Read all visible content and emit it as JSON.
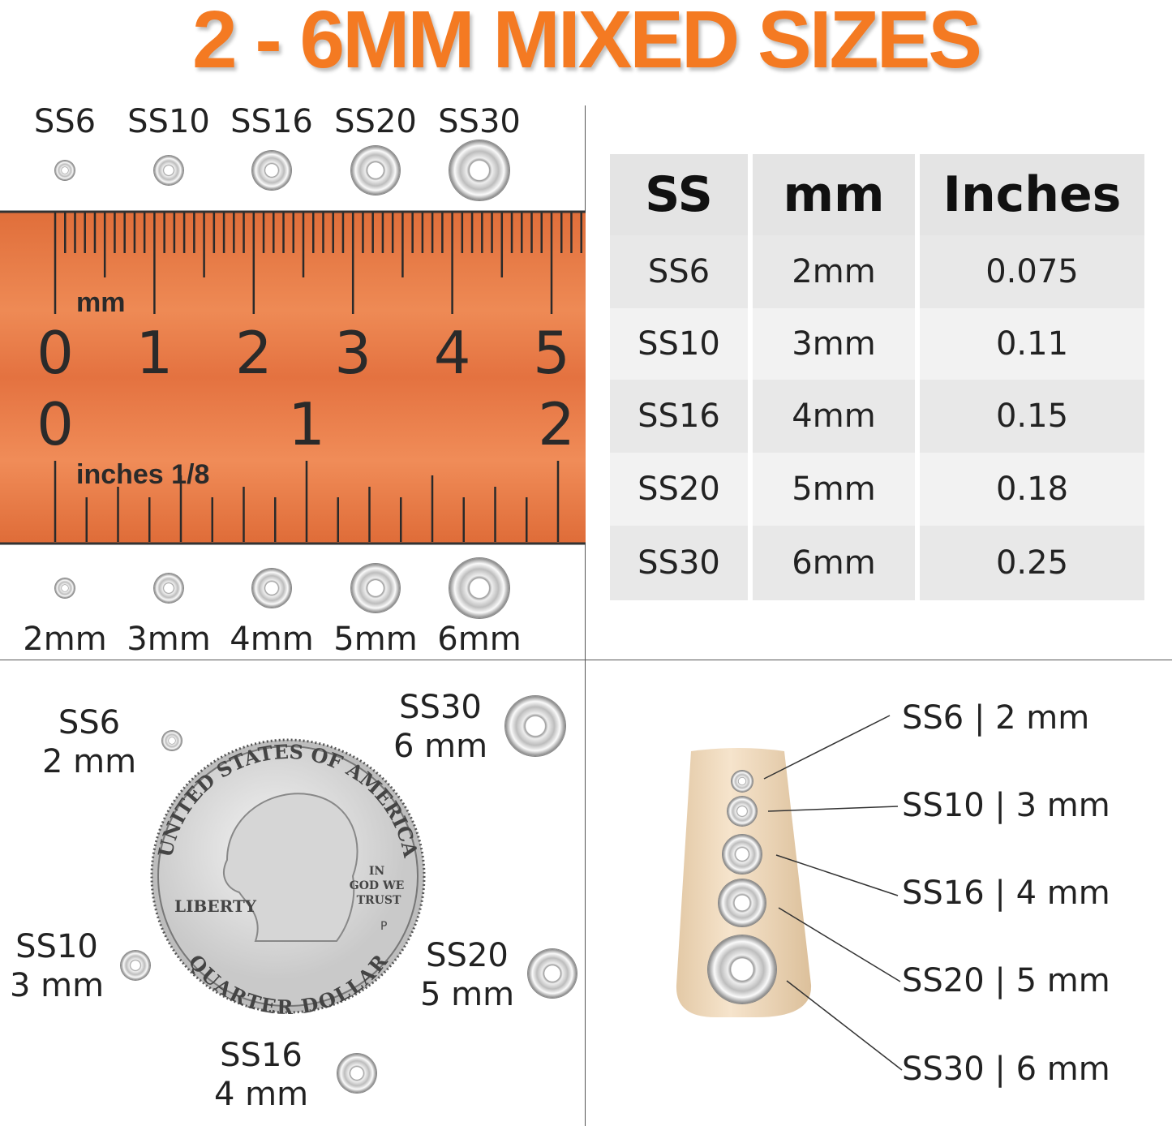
{
  "title": "2 - 6MM MIXED SIZES",
  "colors": {
    "title": "#f47a22",
    "ruler": "#e8743e"
  },
  "ruler": {
    "mm_unit": "mm",
    "mm_labels": [
      "0",
      "1",
      "2",
      "3",
      "4",
      "5"
    ],
    "inch_labels": [
      "0",
      "1",
      "2"
    ],
    "inch_unit": "inches 1/8"
  },
  "ruler_top_labels": [
    "SS6",
    "SS10",
    "SS16",
    "SS20",
    "SS30"
  ],
  "ruler_bottom_labels": [
    "2mm",
    "3mm",
    "4mm",
    "5mm",
    "6mm"
  ],
  "table": {
    "headers": [
      "SS",
      "mm",
      "Inches"
    ],
    "rows": [
      [
        "SS6",
        "2mm",
        "0.075"
      ],
      [
        "SS10",
        "3mm",
        "0.11"
      ],
      [
        "SS16",
        "4mm",
        "0.15"
      ],
      [
        "SS20",
        "5mm",
        "0.18"
      ],
      [
        "SS30",
        "6mm",
        "0.25"
      ]
    ]
  },
  "coin": {
    "top": "UNITED STATES OF AMERICA",
    "bottom": "QUARTER DOLLAR",
    "liberty": "LIBERTY",
    "motto": [
      "IN",
      "GOD WE",
      "TRUST"
    ],
    "mint": "P",
    "labels": [
      {
        "ss": "SS6",
        "mm": "2 mm"
      },
      {
        "ss": "SS30",
        "mm": "6 mm"
      },
      {
        "ss": "SS10",
        "mm": "3 mm"
      },
      {
        "ss": "SS20",
        "mm": "5 mm"
      },
      {
        "ss": "SS16",
        "mm": "4 mm"
      }
    ]
  },
  "nail_labels": [
    "SS6 | 2 mm",
    "SS10 | 3 mm",
    "SS16 | 4 mm",
    "SS20 | 5 mm",
    "SS30 | 6 mm"
  ]
}
